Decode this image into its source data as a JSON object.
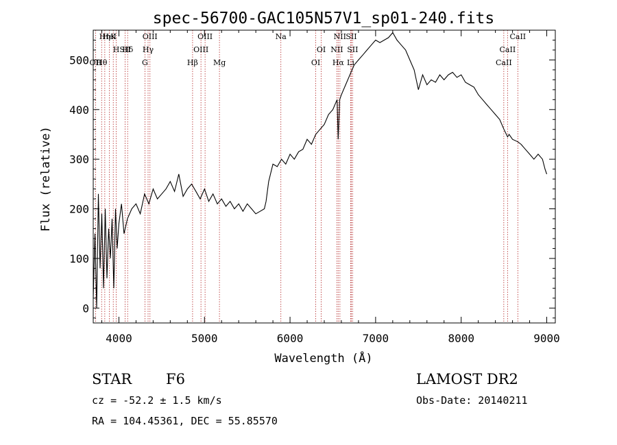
{
  "chart_data": {
    "type": "line",
    "title": "spec-56700-GAC105N57V1_sp01-240.fits",
    "xlabel": "Wavelength (Å)",
    "ylabel": "Flux (relative)",
    "xlim": [
      3700,
      9100
    ],
    "ylim": [
      -30,
      560
    ],
    "xticks": [
      4000,
      5000,
      6000,
      7000,
      8000,
      9000
    ],
    "yticks": [
      0,
      100,
      200,
      300,
      400,
      500
    ],
    "grid": false,
    "series": [
      {
        "x": [
          3700,
          3720,
          3740,
          3760,
          3780,
          3800,
          3820,
          3840,
          3860,
          3880,
          3900,
          3920,
          3940,
          3960,
          3980,
          4000,
          4030,
          4060,
          4100,
          4150,
          4200,
          4250,
          4300,
          4350,
          4400,
          4450,
          4500,
          4550,
          4600,
          4650,
          4700,
          4750,
          4800,
          4850,
          4900,
          4950,
          5000,
          5050,
          5100,
          5150,
          5200,
          5250,
          5300,
          5350,
          5400,
          5450,
          5500,
          5550,
          5600,
          5650,
          5700,
          5720,
          5750,
          5800,
          5850,
          5900,
          5950,
          6000,
          6050,
          6100,
          6150,
          6200,
          6250,
          6300,
          6350,
          6400,
          6450,
          6500,
          6550,
          6563,
          6580,
          6600,
          6650,
          6700,
          6750,
          6800,
          6850,
          6900,
          6950,
          7000,
          7050,
          7100,
          7150,
          7200,
          7250,
          7300,
          7350,
          7400,
          7450,
          7500,
          7550,
          7600,
          7650,
          7700,
          7750,
          7800,
          7850,
          7900,
          7950,
          8000,
          8050,
          8100,
          8150,
          8200,
          8250,
          8300,
          8350,
          8400,
          8450,
          8500,
          8542,
          8560,
          8600,
          8662,
          8700,
          8750,
          8800,
          8850,
          8900,
          8950,
          8980,
          9000
        ],
        "y": [
          20,
          150,
          0,
          230,
          80,
          190,
          40,
          200,
          60,
          160,
          100,
          180,
          40,
          200,
          120,
          170,
          210,
          150,
          180,
          200,
          210,
          190,
          230,
          210,
          240,
          220,
          230,
          240,
          255,
          235,
          270,
          225,
          240,
          250,
          235,
          220,
          240,
          215,
          230,
          210,
          220,
          205,
          215,
          200,
          210,
          195,
          210,
          200,
          190,
          195,
          200,
          215,
          255,
          290,
          285,
          300,
          290,
          310,
          300,
          315,
          320,
          340,
          330,
          350,
          360,
          370,
          390,
          400,
          420,
          340,
          420,
          430,
          450,
          470,
          490,
          500,
          510,
          520,
          530,
          540,
          535,
          540,
          545,
          555,
          540,
          530,
          520,
          500,
          480,
          440,
          470,
          450,
          460,
          455,
          470,
          460,
          470,
          475,
          465,
          470,
          455,
          450,
          445,
          430,
          420,
          410,
          400,
          390,
          380,
          360,
          345,
          350,
          340,
          335,
          330,
          320,
          310,
          300,
          310,
          300,
          280,
          270
        ]
      }
    ],
    "line_markers": [
      {
        "label": "Hη",
        "wave": 3835
      },
      {
        "label": "H",
        "wave": 3969
      },
      {
        "label": "Hθ",
        "wave": 3798
      },
      {
        "label": "K",
        "wave": 3934
      },
      {
        "label": "Hδ",
        "wave": 4102
      },
      {
        "label": "OII",
        "wave": 3727
      },
      {
        "label": "HeI",
        "wave": 3889
      },
      {
        "label": "SII",
        "wave": 4072
      },
      {
        "label": "G",
        "wave": 4304
      },
      {
        "label": "OIII",
        "wave": 4363
      },
      {
        "label": "Hγ",
        "wave": 4341
      },
      {
        "label": "Hβ",
        "wave": 4861
      },
      {
        "label": "OIII",
        "wave": 5007
      },
      {
        "label": "OIII",
        "wave": 4959
      },
      {
        "label": "Mg",
        "wave": 5175
      },
      {
        "label": "Na",
        "wave": 5893
      },
      {
        "label": "OI",
        "wave": 6364
      },
      {
        "label": "OI",
        "wave": 6300
      },
      {
        "label": "NII",
        "wave": 6583
      },
      {
        "label": "SII",
        "wave": 6731
      },
      {
        "label": "Hα",
        "wave": 6563
      },
      {
        "label": "SII",
        "wave": 6716
      },
      {
        "label": "NII",
        "wave": 6548
      },
      {
        "label": "Li",
        "wave": 6708
      },
      {
        "label": "CaII",
        "wave": 8662
      },
      {
        "label": "CaII",
        "wave": 8542
      },
      {
        "label": "CaII",
        "wave": 8498
      }
    ]
  },
  "info": {
    "class": "STAR",
    "subclass": "F6",
    "cz": "cz = -52.2 ± 1.5 km/s",
    "coords": "RA = 104.45361, DEC =  55.85570",
    "survey": "LAMOST DR2",
    "obs_date": "Obs-Date: 20140211"
  },
  "colors": {
    "marker": "#b22222",
    "spectrum": "#000000"
  }
}
